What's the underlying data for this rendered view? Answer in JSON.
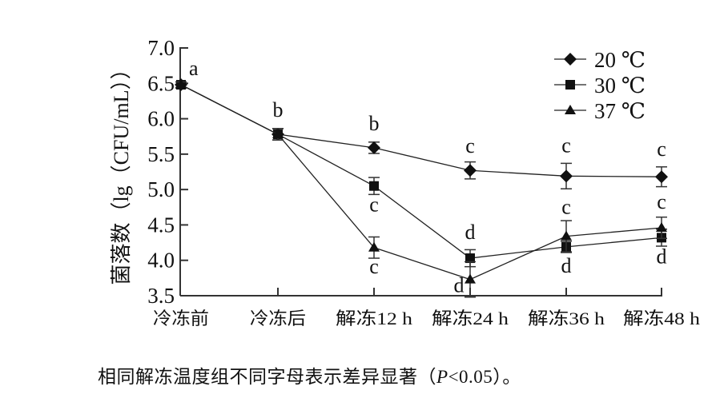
{
  "chart_data": {
    "type": "line",
    "title": "",
    "xlabel": "",
    "ylabel": "菌落数（lg（CFU/mL））",
    "ylim": [
      3.5,
      7.0
    ],
    "yticks": [
      "3.5",
      "4.0",
      "4.5",
      "5.0",
      "5.5",
      "6.0",
      "6.5",
      "7.0"
    ],
    "categories": [
      "冷冻前",
      "冷冻后",
      "解冻12 h",
      "解冻24 h",
      "解冻36 h",
      "解冻48 h"
    ],
    "grid": false,
    "legend_position": "top-right",
    "error_bars": true,
    "series": [
      {
        "name": "20 ℃",
        "marker": "diamond",
        "values": [
          6.48,
          5.78,
          5.59,
          5.27,
          5.19,
          5.18
        ],
        "errors": [
          0.04,
          0.08,
          0.08,
          0.12,
          0.18,
          0.14
        ],
        "labels": [
          "a",
          "b",
          "b",
          "c",
          "c",
          "c"
        ]
      },
      {
        "name": "30 ℃",
        "marker": "square",
        "values": [
          6.48,
          5.78,
          5.05,
          4.03,
          4.19,
          4.32
        ],
        "errors": [
          0.04,
          0.08,
          0.12,
          0.12,
          0.08,
          0.12
        ],
        "labels": [
          "a",
          "b",
          "c",
          "d",
          "d",
          "d"
        ]
      },
      {
        "name": "37 ℃",
        "marker": "triangle",
        "values": [
          6.48,
          5.78,
          4.18,
          3.73,
          4.34,
          4.46
        ],
        "errors": [
          0.04,
          0.08,
          0.15,
          0.25,
          0.22,
          0.15
        ],
        "labels": [
          "a",
          "b",
          "c",
          "d",
          "c",
          "c"
        ]
      }
    ]
  },
  "caption": {
    "text_before": "相同解冻温度组不同字母表示差异显著（",
    "p_symbol": "P",
    "text_after": "<0.05）。"
  }
}
